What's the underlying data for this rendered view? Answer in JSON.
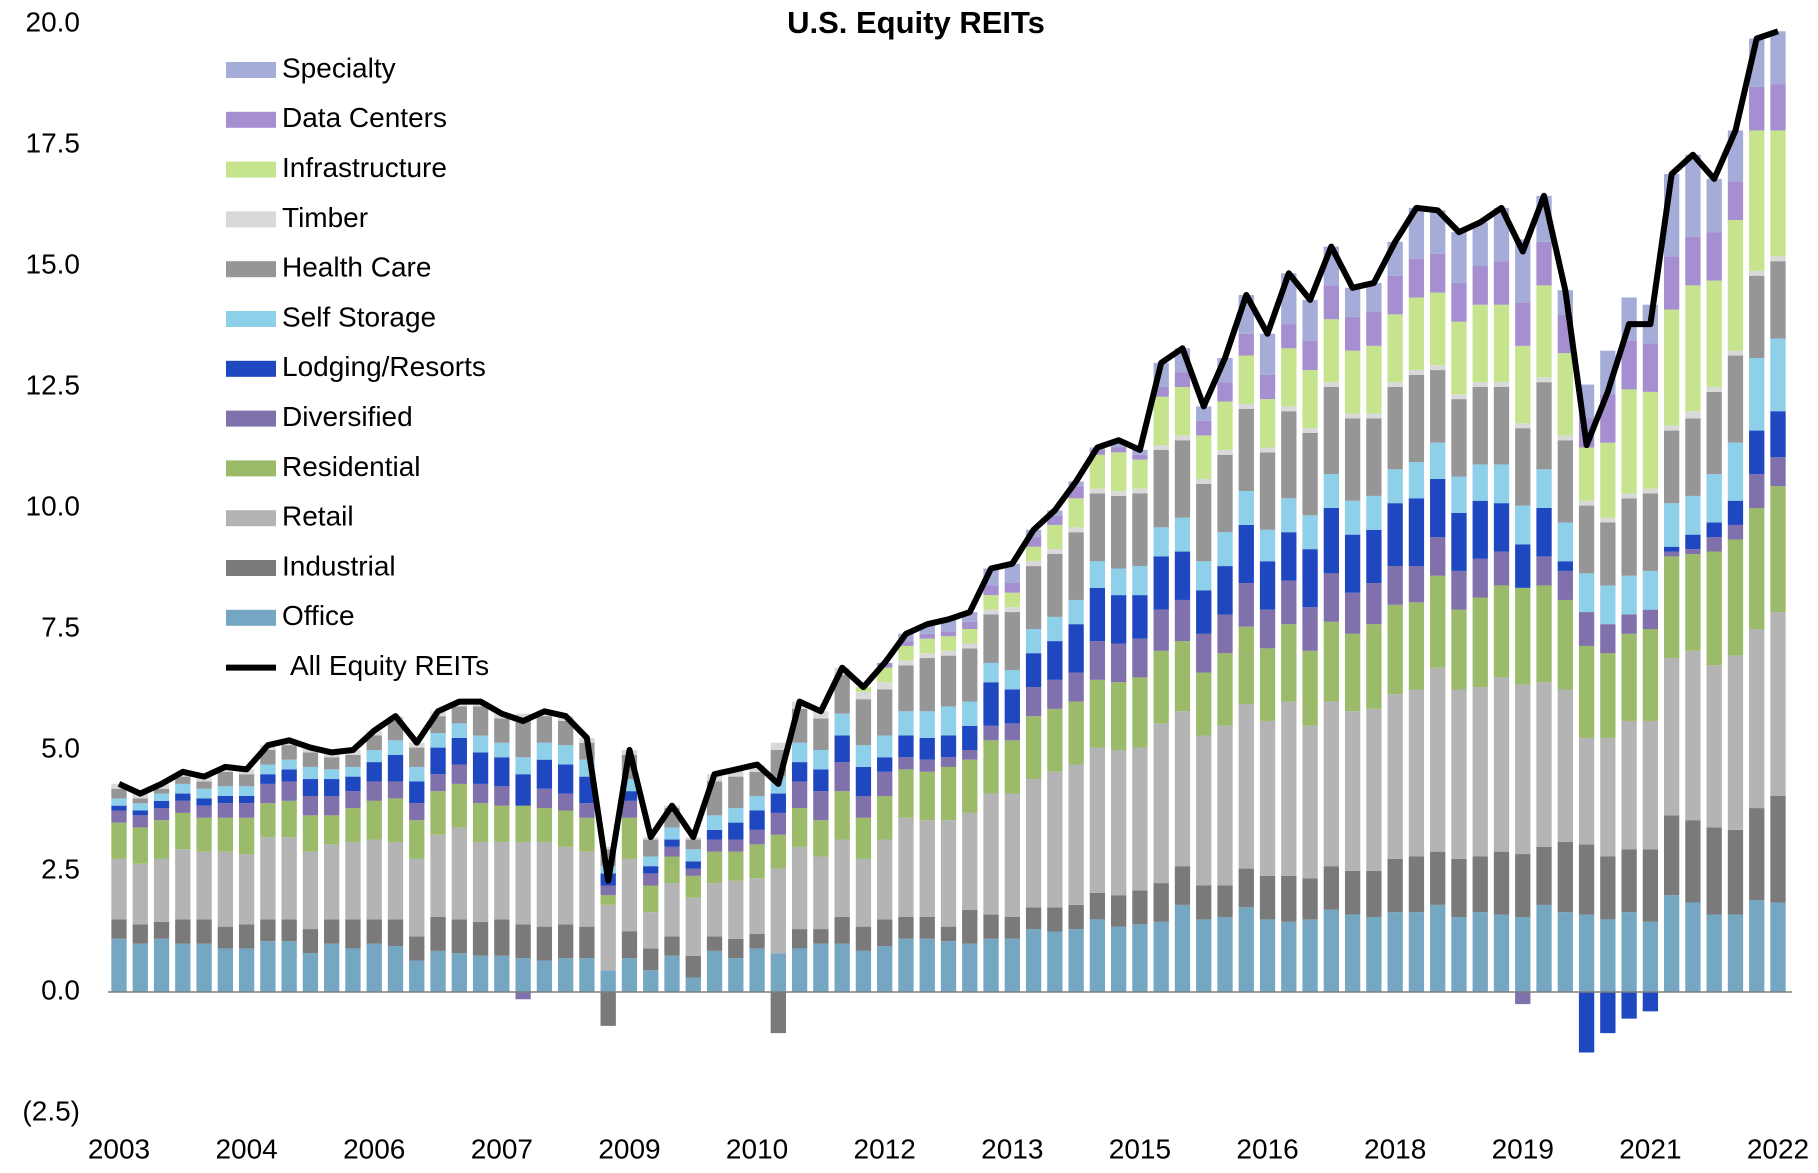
{
  "chart_data": {
    "type": "bar",
    "stacked": true,
    "title": "U.S. Equity REITs",
    "categories": [
      "2003",
      null,
      null,
      null,
      null,
      null,
      "2004",
      null,
      null,
      null,
      null,
      null,
      "2006",
      null,
      null,
      null,
      null,
      null,
      "2007",
      null,
      null,
      null,
      null,
      null,
      "2009",
      null,
      null,
      null,
      null,
      null,
      "2010",
      null,
      null,
      null,
      null,
      null,
      "2012",
      null,
      null,
      null,
      null,
      null,
      "2013",
      null,
      null,
      null,
      null,
      null,
      "2015",
      null,
      null,
      null,
      null,
      null,
      "2016",
      null,
      null,
      null,
      null,
      null,
      "2018",
      null,
      null,
      null,
      null,
      null,
      "2019",
      null,
      null,
      null,
      null,
      null,
      "2021",
      null,
      null,
      null,
      null,
      null,
      "2022"
    ],
    "ylim": [
      -2.5,
      20
    ],
    "yticks": [
      {
        "value": -2.5,
        "label": "(2.5)"
      },
      {
        "value": 0,
        "label": "0.0"
      },
      2.5,
      {
        "value": 5,
        "label": "5.0"
      },
      7.5,
      {
        "value": 10,
        "label": "10.0"
      },
      12.5,
      {
        "value": 15,
        "label": "15.0"
      },
      17.5,
      {
        "value": 20,
        "label": "20.0"
      }
    ],
    "grid": false,
    "legend": "upper left",
    "series": [
      {
        "name": "Office",
        "color": "#75a7c3",
        "values": [
          1.1,
          1.0,
          1.1,
          1.0,
          1.0,
          0.9,
          0.9,
          1.05,
          1.05,
          0.8,
          1.0,
          0.9,
          1.0,
          0.95,
          0.65,
          0.85,
          0.8,
          0.75,
          0.75,
          0.7,
          0.65,
          0.7,
          0.7,
          0.45,
          0.7,
          0.45,
          0.75,
          0.3,
          0.85,
          0.7,
          0.9,
          0.8,
          0.9,
          1.0,
          1.0,
          0.85,
          0.95,
          1.1,
          1.1,
          1.05,
          1.0,
          1.1,
          1.1,
          1.3,
          1.25,
          1.3,
          1.5,
          1.35,
          1.4,
          1.45,
          1.8,
          1.5,
          1.55,
          1.75,
          1.5,
          1.45,
          1.5,
          1.7,
          1.6,
          1.55,
          1.65,
          1.65,
          1.8,
          1.55,
          1.65,
          1.6,
          1.55,
          1.8,
          1.65,
          1.6,
          1.5,
          1.65,
          1.45,
          2.0,
          1.85,
          1.6,
          1.6,
          1.9,
          1.85
        ]
      },
      {
        "name": "Industrial",
        "color": "#7a7a7a",
        "values": [
          0.4,
          0.4,
          0.35,
          0.5,
          0.5,
          0.45,
          0.5,
          0.45,
          0.45,
          0.5,
          0.5,
          0.6,
          0.5,
          0.55,
          0.5,
          0.7,
          0.7,
          0.7,
          0.75,
          0.7,
          0.7,
          0.7,
          0.65,
          -0.7,
          0.55,
          0.45,
          0.4,
          0.45,
          0.3,
          0.4,
          0.3,
          -0.85,
          0.4,
          0.3,
          0.55,
          0.5,
          0.55,
          0.45,
          0.45,
          0.3,
          0.7,
          0.5,
          0.45,
          0.45,
          0.5,
          0.5,
          0.55,
          0.65,
          0.7,
          0.8,
          0.8,
          0.7,
          0.65,
          0.8,
          0.9,
          0.95,
          0.85,
          0.9,
          0.9,
          0.95,
          1.1,
          1.15,
          1.1,
          1.2,
          1.15,
          1.3,
          1.3,
          1.2,
          1.45,
          1.45,
          1.3,
          1.3,
          1.5,
          1.65,
          1.7,
          1.8,
          1.75,
          1.9,
          2.2
        ]
      },
      {
        "name": "Retail",
        "color": "#b4b4b4",
        "values": [
          1.25,
          1.25,
          1.3,
          1.45,
          1.4,
          1.55,
          1.45,
          1.7,
          1.7,
          1.6,
          1.55,
          1.6,
          1.65,
          1.6,
          1.6,
          1.7,
          1.9,
          1.65,
          1.6,
          1.7,
          1.75,
          1.6,
          1.55,
          1.35,
          1.5,
          0.75,
          1.1,
          1.2,
          1.1,
          1.2,
          1.15,
          1.75,
          1.7,
          1.5,
          1.6,
          1.4,
          1.65,
          2.05,
          2.0,
          2.2,
          2.0,
          2.5,
          2.55,
          2.65,
          2.8,
          2.9,
          3.0,
          3.0,
          2.95,
          3.3,
          3.2,
          3.1,
          3.3,
          3.4,
          3.2,
          3.6,
          3.15,
          3.4,
          3.3,
          3.35,
          3.4,
          3.45,
          3.8,
          3.5,
          3.5,
          3.6,
          3.5,
          3.4,
          3.15,
          2.2,
          2.45,
          2.65,
          2.65,
          3.25,
          3.5,
          3.35,
          3.6,
          3.7,
          3.8
        ]
      },
      {
        "name": "Residential",
        "color": "#9bbb6a",
        "values": [
          0.75,
          0.75,
          0.8,
          0.75,
          0.7,
          0.7,
          0.75,
          0.7,
          0.75,
          0.75,
          0.6,
          0.7,
          0.8,
          0.9,
          0.8,
          0.9,
          0.9,
          0.8,
          0.75,
          0.75,
          0.7,
          0.75,
          0.7,
          0.2,
          0.85,
          0.55,
          0.55,
          0.45,
          0.65,
          0.6,
          0.7,
          0.7,
          0.8,
          0.75,
          1.0,
          0.85,
          0.9,
          1.0,
          1.0,
          1.1,
          1.1,
          1.1,
          1.1,
          1.3,
          1.3,
          1.3,
          1.4,
          1.4,
          1.45,
          1.5,
          1.45,
          1.3,
          1.5,
          1.6,
          1.5,
          1.6,
          1.55,
          1.65,
          1.6,
          1.75,
          1.85,
          1.8,
          1.9,
          1.65,
          1.85,
          1.9,
          2.0,
          2.0,
          1.85,
          1.9,
          1.75,
          1.8,
          1.9,
          2.1,
          2.0,
          2.35,
          2.4,
          2.5,
          2.6
        ]
      },
      {
        "name": "Diversified",
        "color": "#8070ab",
        "values": [
          0.25,
          0.25,
          0.25,
          0.25,
          0.25,
          0.3,
          0.3,
          0.4,
          0.4,
          0.4,
          0.4,
          0.35,
          0.4,
          0.35,
          0.35,
          0.35,
          0.4,
          0.4,
          0.4,
          -0.15,
          0.4,
          0.35,
          0.3,
          0.2,
          0.35,
          0.25,
          0.2,
          0.15,
          0.25,
          0.25,
          0.3,
          0.45,
          0.55,
          0.6,
          0.6,
          0.45,
          0.5,
          0.25,
          0.25,
          0.2,
          0.2,
          0.3,
          0.35,
          0.6,
          0.6,
          0.6,
          0.8,
          0.8,
          0.8,
          0.85,
          0.85,
          0.8,
          0.8,
          0.9,
          0.8,
          0.9,
          0.9,
          1.0,
          0.85,
          0.85,
          0.8,
          0.75,
          0.8,
          0.8,
          0.8,
          0.7,
          -0.25,
          0.6,
          0.6,
          0.7,
          0.6,
          0.4,
          0.4,
          0.1,
          0.1,
          0.3,
          0.3,
          0.7,
          0.6
        ]
      },
      {
        "name": "Lodging/Resorts",
        "color": "#1f47c0",
        "values": [
          0.1,
          0.1,
          0.15,
          0.15,
          0.15,
          0.15,
          0.15,
          0.2,
          0.25,
          0.35,
          0.35,
          0.3,
          0.4,
          0.55,
          0.45,
          0.55,
          0.55,
          0.65,
          0.6,
          0.65,
          0.6,
          0.6,
          0.55,
          0.25,
          0.2,
          0.15,
          0.15,
          0.15,
          0.2,
          0.35,
          0.4,
          0.4,
          0.4,
          0.45,
          0.55,
          0.6,
          0.3,
          0.45,
          0.45,
          0.45,
          0.5,
          0.9,
          0.7,
          0.7,
          0.8,
          1.0,
          1.1,
          1.0,
          0.9,
          1.1,
          1.0,
          0.9,
          1.0,
          1.2,
          1.0,
          1.0,
          1.2,
          1.35,
          1.2,
          1.1,
          1.3,
          1.4,
          1.2,
          1.2,
          1.2,
          1.0,
          0.9,
          1.0,
          0.2,
          -1.25,
          -0.85,
          -0.55,
          -0.4,
          0.1,
          0.3,
          0.3,
          0.5,
          0.9,
          0.95
        ]
      },
      {
        "name": "Self Storage",
        "color": "#8ecfea",
        "values": [
          0.15,
          0.15,
          0.15,
          0.2,
          0.2,
          0.2,
          0.2,
          0.2,
          0.2,
          0.25,
          0.2,
          0.2,
          0.25,
          0.3,
          0.3,
          0.3,
          0.3,
          0.35,
          0.3,
          0.35,
          0.35,
          0.4,
          0.35,
          0.15,
          0.25,
          0.2,
          0.25,
          0.25,
          0.3,
          0.3,
          0.3,
          0.35,
          0.4,
          0.4,
          0.45,
          0.45,
          0.45,
          0.5,
          0.55,
          0.6,
          0.5,
          0.4,
          0.4,
          0.5,
          0.5,
          0.5,
          0.55,
          0.55,
          0.6,
          0.6,
          0.7,
          0.6,
          0.7,
          0.7,
          0.65,
          0.7,
          0.7,
          0.7,
          0.7,
          0.7,
          0.7,
          0.75,
          0.75,
          0.75,
          0.75,
          0.8,
          0.8,
          0.8,
          0.8,
          0.8,
          0.8,
          0.8,
          0.8,
          0.9,
          0.8,
          1.0,
          1.2,
          1.5,
          1.5
        ]
      },
      {
        "name": "Health Care",
        "color": "#969696",
        "values": [
          0.2,
          0.1,
          0.1,
          0.15,
          0.15,
          0.3,
          0.25,
          0.3,
          0.3,
          0.3,
          0.25,
          0.25,
          0.3,
          0.4,
          0.4,
          0.35,
          0.35,
          0.6,
          0.5,
          0.8,
          0.55,
          0.5,
          0.35,
          0.35,
          0.5,
          0.35,
          0.4,
          0.2,
          0.7,
          0.65,
          0.5,
          0.55,
          0.7,
          0.65,
          0.8,
          0.95,
          0.95,
          0.95,
          1.1,
          1.05,
          1.1,
          1.0,
          1.2,
          1.3,
          1.3,
          1.4,
          1.4,
          1.5,
          1.5,
          1.6,
          1.6,
          1.6,
          1.6,
          1.7,
          1.6,
          1.8,
          1.7,
          1.8,
          1.7,
          1.6,
          1.7,
          1.8,
          1.5,
          1.6,
          1.6,
          1.6,
          1.6,
          1.8,
          1.7,
          1.4,
          1.3,
          1.6,
          1.6,
          1.5,
          1.6,
          1.7,
          1.8,
          1.7,
          1.6
        ]
      },
      {
        "name": "Timber",
        "color": "#d9d9d9",
        "values": [
          0.1,
          0.1,
          0.1,
          0.1,
          0.1,
          0.1,
          0.1,
          0.1,
          0.1,
          0.1,
          0.1,
          0.1,
          0.1,
          0.1,
          0.1,
          0.1,
          0.1,
          0.1,
          0.1,
          0.1,
          0.1,
          0.1,
          0.1,
          0.05,
          0.1,
          0.05,
          0.05,
          0.05,
          0.15,
          0.15,
          0.15,
          0.15,
          0.15,
          0.15,
          0.15,
          0.15,
          0.15,
          0.1,
          0.1,
          0.1,
          0.1,
          0.1,
          0.1,
          0.1,
          0.1,
          0.1,
          0.1,
          0.1,
          0.1,
          0.1,
          0.1,
          0.1,
          0.1,
          0.1,
          0.1,
          0.1,
          0.1,
          0.1,
          0.1,
          0.1,
          0.1,
          0.1,
          0.1,
          0.1,
          0.1,
          0.1,
          0.1,
          0.1,
          0.1,
          0.1,
          0.1,
          0.1,
          0.1,
          0.1,
          0.15,
          0.1,
          0.1,
          0.1,
          0.1
        ]
      },
      {
        "name": "Infrastructure",
        "color": "#c6e48e",
        "values": [
          0,
          0,
          0,
          0,
          0,
          0,
          0,
          0,
          0,
          0,
          0,
          0,
          0,
          0,
          0,
          0,
          0,
          0,
          0,
          0,
          0,
          0,
          0,
          0,
          0,
          0,
          0,
          0,
          0,
          0,
          0,
          0,
          0,
          0,
          0,
          0.1,
          0.3,
          0.3,
          0.3,
          0.3,
          0.3,
          0.3,
          0.3,
          0.3,
          0.5,
          0.6,
          0.7,
          0.8,
          0.6,
          1.0,
          1.0,
          0.9,
          1.0,
          1.0,
          1.0,
          1.2,
          1.2,
          1.3,
          1.3,
          1.4,
          1.4,
          1.5,
          1.5,
          1.5,
          1.6,
          1.6,
          1.6,
          1.9,
          1.7,
          1.1,
          1.55,
          2.15,
          2.0,
          2.4,
          2.6,
          2.2,
          2.7,
          2.9,
          2.6
        ]
      },
      {
        "name": "Data Centers",
        "color": "#a58fd0",
        "values": [
          0,
          0,
          0,
          0,
          0,
          0,
          0,
          0,
          0,
          0,
          0,
          0,
          0,
          0,
          0,
          0,
          0,
          0,
          0,
          0,
          0,
          0,
          0,
          0,
          0,
          0,
          0,
          0,
          0,
          0,
          0,
          0,
          0,
          0,
          0,
          0,
          0.1,
          0.1,
          0.1,
          0.1,
          0.15,
          0.2,
          0.2,
          0.2,
          0.2,
          0.25,
          0.1,
          0.1,
          0.1,
          0.2,
          0.3,
          0.3,
          0.4,
          0.45,
          0.5,
          0.5,
          0.6,
          0.7,
          0.7,
          0.7,
          0.8,
          0.8,
          0.8,
          0.8,
          0.8,
          0.9,
          0.9,
          0.9,
          0.8,
          0.6,
          1.0,
          1.0,
          1.0,
          1.1,
          1.0,
          1.0,
          0.8,
          0.9,
          0.95
        ]
      },
      {
        "name": "Specialty",
        "color": "#a5acd8",
        "values": [
          0,
          0,
          0,
          0,
          0,
          0,
          0,
          0,
          0,
          0,
          0,
          0,
          0,
          0,
          0,
          0,
          0,
          0,
          0,
          0,
          0,
          0,
          0,
          0,
          0,
          0,
          0,
          0,
          0,
          0,
          0,
          0,
          0,
          0,
          0,
          0,
          0,
          0.15,
          0.2,
          0.25,
          0.2,
          0.35,
          0.4,
          0.15,
          0.1,
          0.1,
          0.05,
          0.15,
          0.1,
          0.5,
          0.5,
          0.3,
          0.5,
          0.8,
          0.85,
          1.05,
          0.85,
          0.8,
          0.6,
          0.6,
          0.7,
          1.05,
          0.9,
          1.05,
          0.9,
          1.1,
          1.3,
          0.95,
          0.5,
          0.7,
          0.9,
          0.9,
          0.8,
          1.7,
          1.7,
          1.1,
          1.05,
          1.0,
          1.1
        ]
      }
    ],
    "line": {
      "name": "All Equity REITs",
      "color": "#000000",
      "values": [
        4.3,
        4.1,
        4.3,
        4.55,
        4.45,
        4.65,
        4.6,
        5.1,
        5.2,
        5.05,
        4.95,
        5.0,
        5.4,
        5.7,
        5.15,
        5.8,
        6.0,
        6.0,
        5.75,
        5.6,
        5.8,
        5.7,
        5.25,
        2.3,
        5.0,
        3.2,
        3.85,
        3.2,
        4.5,
        4.6,
        4.7,
        4.3,
        6.0,
        5.8,
        6.7,
        6.3,
        6.8,
        7.4,
        7.6,
        7.7,
        7.85,
        8.75,
        8.85,
        9.55,
        9.95,
        10.55,
        11.25,
        11.4,
        11.2,
        13.0,
        13.3,
        12.1,
        13.1,
        14.4,
        13.6,
        14.85,
        14.3,
        15.4,
        14.55,
        14.65,
        15.5,
        16.2,
        16.15,
        15.7,
        15.9,
        16.2,
        15.3,
        16.45,
        14.5,
        11.3,
        12.4,
        13.8,
        13.8,
        16.9,
        17.3,
        16.8,
        17.8,
        19.7,
        19.85
      ]
    }
  }
}
